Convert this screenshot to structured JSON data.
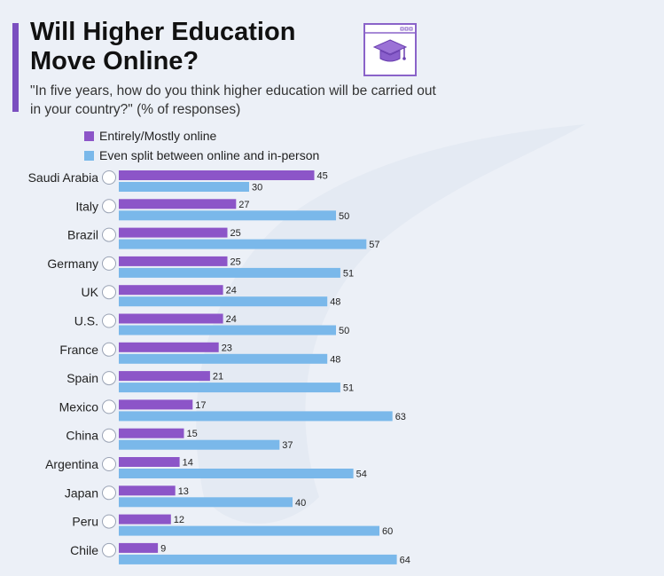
{
  "header": {
    "title_line1": "Will Higher Education",
    "title_line2": "Move Online?",
    "subtitle": "\"In five years, how do you think higher education will be carried out in your country?\" (% of responses)",
    "icon": "graduation-cap-icon"
  },
  "colors": {
    "accent": "#7b4fc0",
    "online": "#8c55c8",
    "split": "#7ab8ea"
  },
  "chart_data": {
    "type": "bar",
    "orientation": "horizontal",
    "categories": [
      "Saudi Arabia",
      "Italy",
      "Brazil",
      "Germany",
      "UK",
      "U.S.",
      "France",
      "Spain",
      "Mexico",
      "China",
      "Argentina",
      "Japan",
      "Peru",
      "Chile"
    ],
    "series": [
      {
        "name": "Entirely/Mostly online",
        "values": [
          45,
          27,
          25,
          25,
          24,
          24,
          23,
          21,
          17,
          15,
          14,
          13,
          12,
          9
        ]
      },
      {
        "name": "Even split between online and in-person",
        "values": [
          30,
          50,
          57,
          51,
          48,
          50,
          48,
          51,
          63,
          37,
          54,
          40,
          60,
          64
        ]
      }
    ],
    "legend_position": "top",
    "grid": false,
    "data_labels": true
  }
}
